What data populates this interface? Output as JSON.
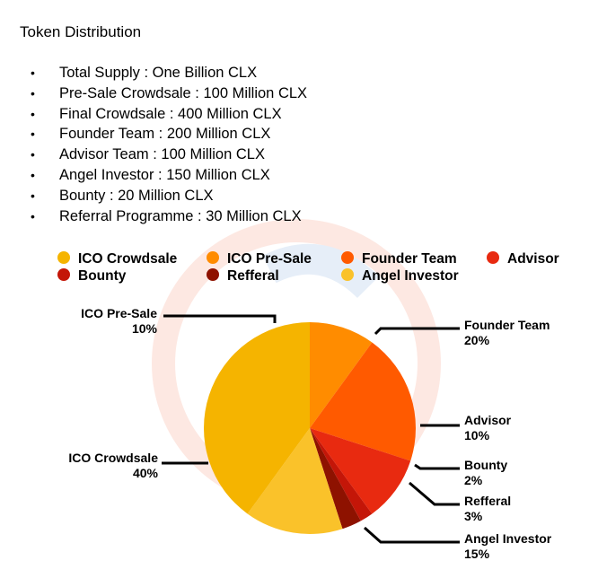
{
  "title": "Token Distribution",
  "bullets": [
    "Total Supply : One Billion CLX",
    "Pre-Sale Crowdsale : 100 Million CLX",
    "Final Crowdsale : 400 Million CLX",
    "Founder Team : 200 Million CLX",
    "Advisor Team : 100 Million CLX",
    "Angel Investor : 150 Million CLX",
    "Bounty : 20 Million CLX",
    "Referral Programme : 30 Million CLX"
  ],
  "bullet_symbol": "•",
  "legend": [
    {
      "label": "ICO Crowdsale",
      "color": "#f5b400"
    },
    {
      "label": "ICO Pre-Sale",
      "color": "#ff8c00"
    },
    {
      "label": "Founder Team",
      "color": "#ff5a00"
    },
    {
      "label": "Advisor",
      "color": "#e82a10"
    },
    {
      "label": "Bounty",
      "color": "#c41608"
    },
    {
      "label": "Refferal",
      "color": "#8e1200"
    },
    {
      "label": "Angel Investor",
      "color": "#fac22a"
    }
  ],
  "slice_labels": {
    "ico_presale": {
      "name": "ICO Pre-Sale",
      "pct": "10%"
    },
    "ico_crowdsale": {
      "name": "ICO Crowdsale",
      "pct": "40%"
    },
    "founder_team": {
      "name": "Founder Team",
      "pct": "20%"
    },
    "advisor": {
      "name": "Advisor",
      "pct": "10%"
    },
    "bounty": {
      "name": "Bounty",
      "pct": "2%"
    },
    "refferal": {
      "name": "Refferal",
      "pct": "3%"
    },
    "angel_investor": {
      "name": "Angel Investor",
      "pct": "15%"
    }
  },
  "chart_data": {
    "type": "pie",
    "title": "",
    "categories": [
      "ICO Pre-Sale",
      "Founder Team",
      "Advisor",
      "Bounty",
      "Refferal",
      "Angel Investor",
      "ICO Crowdsale"
    ],
    "values": [
      10,
      20,
      10,
      2,
      3,
      15,
      40
    ],
    "colors": [
      "#ff8c00",
      "#ff5a00",
      "#e82a10",
      "#c41608",
      "#8e1200",
      "#fac22a",
      "#f5b400"
    ],
    "unit": "%",
    "legend_position": "top"
  }
}
